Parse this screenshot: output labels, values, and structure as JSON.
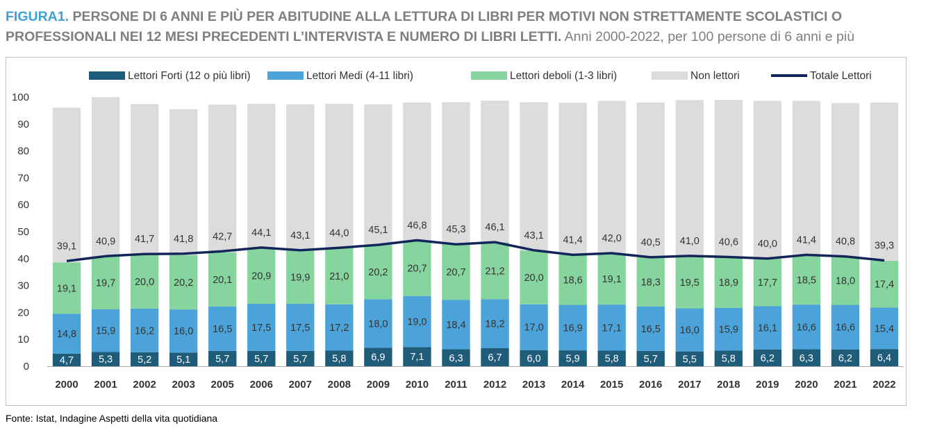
{
  "header": {
    "figure_label": "FIGURA1.",
    "title": "PERSONE DI 6 ANNI E PIÙ PER ABITUDINE ALLA LETTURA DI LIBRI PER MOTIVI NON STRETTAMENTE SCOLASTICI O PROFESSIONALI NEI 12 MESI PRECEDENTI L’INTERVISTA E NUMERO DI LIBRI LETTI.",
    "subtitle": "Anni 2000-2022, per 100 persone di 6 anni e più"
  },
  "footer": {
    "source": "Fonte: Istat, Indagine Aspetti della vita quotidiana"
  },
  "chart_data": {
    "type": "bar",
    "stacked": true,
    "categories": [
      "2000",
      "2001",
      "2002",
      "2003",
      "2005",
      "2006",
      "2007",
      "2008",
      "2009",
      "2010",
      "2011",
      "2012",
      "2013",
      "2014",
      "2015",
      "2016",
      "2017",
      "2018",
      "2019",
      "2020",
      "2021",
      "2022"
    ],
    "ylim": [
      0,
      100
    ],
    "yticks": [
      0,
      10,
      20,
      30,
      40,
      50,
      60,
      70,
      80,
      90,
      100
    ],
    "legend_position": "top",
    "grid": false,
    "series": [
      {
        "name": "Lettori Forti (12 o più libri)",
        "color": "#1f5c7a",
        "label_color": "#ffffff",
        "values": [
          4.7,
          5.3,
          5.2,
          5.1,
          5.7,
          5.7,
          5.7,
          5.8,
          6.9,
          7.1,
          6.3,
          6.7,
          6.0,
          5.9,
          5.8,
          5.7,
          5.5,
          5.8,
          6.2,
          6.3,
          6.2,
          6.4
        ],
        "labels": [
          "4,7",
          "5,3",
          "5,2",
          "5,1",
          "5,7",
          "5,7",
          "5,7",
          "5,8",
          "6,9",
          "7,1",
          "6,3",
          "6,7",
          "6,0",
          "5,9",
          "5,8",
          "5,7",
          "5,5",
          "5,8",
          "6,2",
          "6,3",
          "6,2",
          "6,4"
        ]
      },
      {
        "name": "Lettori Medi (4-11 libri)",
        "color": "#4ba3d9",
        "label_color": "#333333",
        "values": [
          14.8,
          15.9,
          16.2,
          16.0,
          16.5,
          17.5,
          17.5,
          17.2,
          18.0,
          19.0,
          18.4,
          18.2,
          17.0,
          16.9,
          17.1,
          16.5,
          16.0,
          15.9,
          16.1,
          16.6,
          16.6,
          15.4
        ],
        "labels": [
          "14,8",
          "15,9",
          "16,2",
          "16,0",
          "16,5",
          "17,5",
          "17,5",
          "17,2",
          "18,0",
          "19,0",
          "18,4",
          "18,2",
          "17,0",
          "16,9",
          "17,1",
          "16,5",
          "16,0",
          "15,9",
          "16,1",
          "16,6",
          "16,6",
          "15,4"
        ]
      },
      {
        "name": "Lettori deboli (1-3 libri)",
        "color": "#86d49e",
        "label_color": "#333333",
        "values": [
          19.1,
          19.7,
          20.0,
          20.2,
          20.1,
          20.9,
          19.9,
          21.0,
          20.2,
          20.7,
          20.7,
          21.2,
          20.0,
          18.6,
          19.1,
          18.3,
          19.5,
          18.9,
          17.7,
          18.5,
          18.0,
          17.4
        ],
        "labels": [
          "19,1",
          "19,7",
          "20,0",
          "20,2",
          "20,1",
          "20,9",
          "19,9",
          "21,0",
          "20,2",
          "20,7",
          "20,7",
          "21,2",
          "20,0",
          "18,6",
          "19,1",
          "18,3",
          "19,5",
          "18,9",
          "17,7",
          "18,5",
          "18,0",
          "17,4"
        ]
      },
      {
        "name": "Non lettori",
        "color": "#dcdcdc",
        "values": [
          57.5,
          59.1,
          56.0,
          54.2,
          54.9,
          53.4,
          54.2,
          53.5,
          52.2,
          51.2,
          52.7,
          52.6,
          55.1,
          56.5,
          56.6,
          57.5,
          57.9,
          58.4,
          58.6,
          57.2,
          57.0,
          58.8
        ]
      }
    ],
    "line": {
      "name": "Totale Lettori",
      "color": "#13265a",
      "values": [
        39.1,
        40.9,
        41.7,
        41.8,
        42.7,
        44.1,
        43.1,
        44.0,
        45.1,
        46.8,
        45.3,
        46.1,
        43.1,
        41.4,
        42.0,
        40.5,
        41.0,
        40.6,
        40.0,
        41.4,
        40.8,
        39.3
      ],
      "labels": [
        "39,1",
        "40,9",
        "41,7",
        "41,8",
        "42,7",
        "44,1",
        "43,1",
        "44,0",
        "45,1",
        "46,8",
        "45,3",
        "46,1",
        "43,1",
        "41,4",
        "42,0",
        "40,5",
        "41,0",
        "40,6",
        "40,0",
        "41,4",
        "40,8",
        "39,3"
      ]
    }
  }
}
